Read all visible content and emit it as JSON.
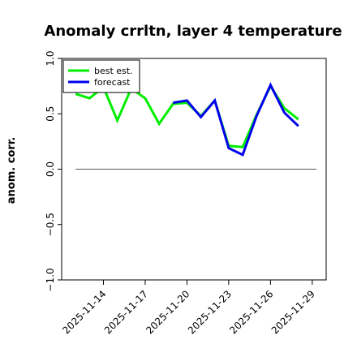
{
  "chart_data": {
    "type": "line",
    "title": "Anomaly crrltn, layer 4 temperature",
    "xlabel": "",
    "ylabel": "anom. corr.",
    "ylim": [
      -1.0,
      1.0
    ],
    "yticks": [
      "−1.0",
      "−0.5",
      "0.0",
      "0.5",
      "1.0"
    ],
    "ytick_values": [
      -1.0,
      -0.5,
      0.0,
      0.5,
      1.0
    ],
    "x_dates": [
      "2025-11-12",
      "2025-11-13",
      "2025-11-14",
      "2025-11-15",
      "2025-11-16",
      "2025-11-17",
      "2025-11-18",
      "2025-11-19",
      "2025-11-20",
      "2025-11-21",
      "2025-11-22",
      "2025-11-23",
      "2025-11-24",
      "2025-11-25",
      "2025-11-26",
      "2025-11-27",
      "2025-11-28",
      "2025-11-29"
    ],
    "xlim": [
      "2025-11-11",
      "2025-11-30"
    ],
    "xticks": [
      "2025-11-14",
      "2025-11-17",
      "2025-11-20",
      "2025-11-23",
      "2025-11-26",
      "2025-11-29"
    ],
    "xtick_colors": [
      "#000000",
      "#000000",
      "#008000",
      "#000000",
      "#000000",
      "#000000"
    ],
    "series": [
      {
        "name": "best est.",
        "color": "#00ee00",
        "values": [
          0.68,
          0.64,
          0.74,
          0.44,
          0.73,
          0.64,
          0.41,
          0.59,
          0.6,
          0.48,
          0.62,
          0.21,
          0.2,
          0.49,
          0.75,
          0.55,
          0.45,
          null
        ]
      },
      {
        "name": "forecast",
        "color": "#0000ee",
        "values": [
          null,
          null,
          null,
          null,
          null,
          null,
          null,
          0.6,
          0.62,
          0.47,
          0.62,
          0.19,
          0.13,
          0.48,
          0.76,
          0.51,
          0.39,
          null
        ]
      }
    ],
    "reference_line": 0.0,
    "legend_position": "top-left",
    "grid": false
  }
}
